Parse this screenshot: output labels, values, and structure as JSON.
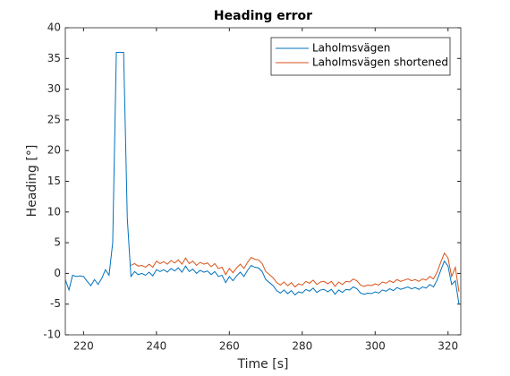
{
  "chart_data": {
    "type": "line",
    "title": "Heading error",
    "xlabel": "Time [s]",
    "ylabel": "Heading [°]",
    "xlim": [
      215,
      323.5
    ],
    "ylim": [
      -10,
      40
    ],
    "xticks": [
      220,
      240,
      260,
      280,
      300,
      320
    ],
    "yticks": [
      -10,
      -5,
      0,
      5,
      10,
      15,
      20,
      25,
      30,
      35,
      40
    ],
    "legend": "top-right",
    "series": [
      {
        "name": "Laholmsvägen",
        "color": "#0072bd",
        "x": [
          215,
          216,
          217,
          218,
          219,
          220,
          221,
          222,
          223,
          224,
          225,
          226,
          227,
          228,
          229,
          230,
          231,
          232,
          233,
          234,
          235,
          236,
          237,
          238,
          239,
          240,
          241,
          242,
          243,
          244,
          245,
          246,
          247,
          248,
          249,
          250,
          251,
          252,
          253,
          254,
          255,
          256,
          257,
          258,
          259,
          260,
          261,
          262,
          263,
          264,
          265,
          266,
          267,
          268,
          269,
          270,
          271,
          272,
          273,
          274,
          275,
          276,
          277,
          278,
          279,
          280,
          281,
          282,
          283,
          284,
          285,
          286,
          287,
          288,
          289,
          290,
          291,
          292,
          293,
          294,
          295,
          296,
          297,
          298,
          299,
          300,
          301,
          302,
          303,
          304,
          305,
          306,
          307,
          308,
          309,
          310,
          311,
          312,
          313,
          314,
          315,
          316,
          317,
          318,
          319,
          320,
          321,
          322,
          323
        ],
        "values": [
          -1,
          -2.7,
          -0.3,
          -0.5,
          -0.4,
          -0.5,
          -1.3,
          -2,
          -1,
          -1.8,
          -0.8,
          0.6,
          -0.3,
          5,
          36,
          36,
          36,
          9,
          -0.5,
          0.3,
          -0.2,
          0,
          -0.3,
          0.2,
          -0.4,
          0.6,
          0.3,
          0.6,
          0.2,
          0.8,
          0.4,
          0.9,
          0.2,
          1.2,
          0.3,
          0.7,
          0,
          0.5,
          0.2,
          0.4,
          -0.2,
          0.3,
          -0.5,
          -0.3,
          -1.5,
          -0.5,
          -1.2,
          -0.4,
          0.2,
          -0.5,
          0.5,
          1.3,
          1,
          0.9,
          0.3,
          -1,
          -1.5,
          -2,
          -2.8,
          -3.2,
          -2.7,
          -3.3,
          -2.8,
          -3.5,
          -3,
          -3.2,
          -2.6,
          -2.9,
          -2.4,
          -3.1,
          -2.7,
          -2.6,
          -3,
          -2.6,
          -3.4,
          -2.7,
          -3.1,
          -2.6,
          -2.7,
          -2.2,
          -2.5,
          -3.2,
          -3.4,
          -3.2,
          -3.3,
          -3,
          -3.2,
          -2.7,
          -2.9,
          -2.5,
          -2.8,
          -2.3,
          -2.6,
          -2.4,
          -2.2,
          -2.5,
          -2.3,
          -2.6,
          -2.2,
          -2.4,
          -1.8,
          -2.2,
          -1.1,
          0.5,
          2,
          1.2,
          -1.8,
          -1.2,
          -5
        ]
      },
      {
        "name": "Laholmsvägen shortened",
        "color": "#d95319",
        "x": [
          233,
          234,
          235,
          236,
          237,
          238,
          239,
          240,
          241,
          242,
          243,
          244,
          245,
          246,
          247,
          248,
          249,
          250,
          251,
          252,
          253,
          254,
          255,
          256,
          257,
          258,
          259,
          260,
          261,
          262,
          263,
          264,
          265,
          266,
          267,
          268,
          269,
          270,
          271,
          272,
          273,
          274,
          275,
          276,
          277,
          278,
          279,
          280,
          281,
          282,
          283,
          284,
          285,
          286,
          287,
          288,
          289,
          290,
          291,
          292,
          293,
          294,
          295,
          296,
          297,
          298,
          299,
          300,
          301,
          302,
          303,
          304,
          305,
          306,
          307,
          308,
          309,
          310,
          311,
          312,
          313,
          314,
          315,
          316,
          317,
          318,
          319,
          320,
          321,
          322,
          323
        ],
        "values": [
          1.3,
          1.6,
          1.2,
          1.3,
          1.0,
          1.5,
          1.0,
          2.0,
          1.6,
          1.9,
          1.5,
          2.1,
          1.7,
          2.2,
          1.5,
          2.5,
          1.6,
          2.0,
          1.3,
          1.8,
          1.5,
          1.7,
          1.1,
          1.6,
          0.8,
          1.0,
          -0.2,
          0.8,
          0.1,
          0.9,
          1.5,
          0.8,
          1.8,
          2.6,
          2.3,
          2.2,
          1.6,
          0.3,
          -0.2,
          -0.7,
          -1.5,
          -1.9,
          -1.4,
          -2.0,
          -1.5,
          -2.2,
          -1.7,
          -1.9,
          -1.3,
          -1.6,
          -1.1,
          -1.8,
          -1.4,
          -1.3,
          -1.7,
          -1.3,
          -2.1,
          -1.4,
          -1.8,
          -1.3,
          -1.4,
          -0.9,
          -1.2,
          -1.9,
          -2.1,
          -1.9,
          -2.0,
          -1.7,
          -1.9,
          -1.4,
          -1.6,
          -1.2,
          -1.5,
          -1.0,
          -1.3,
          -1.1,
          -0.9,
          -1.2,
          -1.0,
          -1.3,
          -0.9,
          -1.1,
          -0.5,
          -0.9,
          0.2,
          1.8,
          3.3,
          2.5,
          -0.5,
          1.0,
          -3
        ]
      }
    ]
  }
}
